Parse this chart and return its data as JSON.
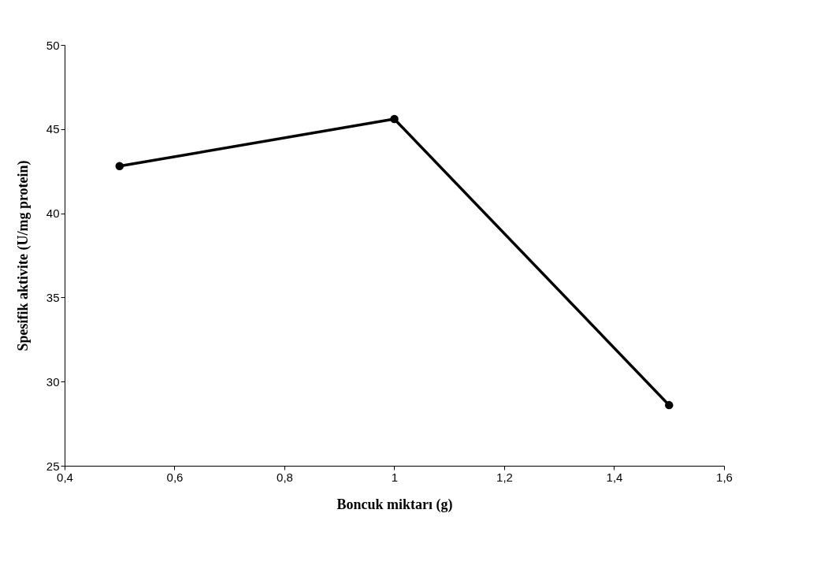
{
  "chart_data": {
    "type": "line",
    "xlabel": "Boncuk miktarı (g)",
    "ylabel": "Spesifik aktivite (U/mg protein)",
    "x": [
      0.5,
      1,
      1.5
    ],
    "series": [
      {
        "color": "#000000",
        "values": [
          42.8,
          45.6,
          28.6
        ]
      }
    ],
    "marker": "circle",
    "line_style": "solid",
    "grid": false,
    "xlim": [
      0.4,
      1.6
    ],
    "xticks": [
      {
        "value": 0.4,
        "label": "0,4"
      },
      {
        "value": 0.6,
        "label": "0,6"
      },
      {
        "value": 0.8,
        "label": "0,8"
      },
      1,
      {
        "value": 1.2,
        "label": "1,2"
      },
      {
        "value": 1.4,
        "label": "1,4"
      },
      {
        "value": 1.6,
        "label": "1,6"
      }
    ],
    "ylim": [
      25,
      50
    ],
    "yticks": [
      25,
      30,
      35,
      40,
      45,
      50
    ]
  }
}
